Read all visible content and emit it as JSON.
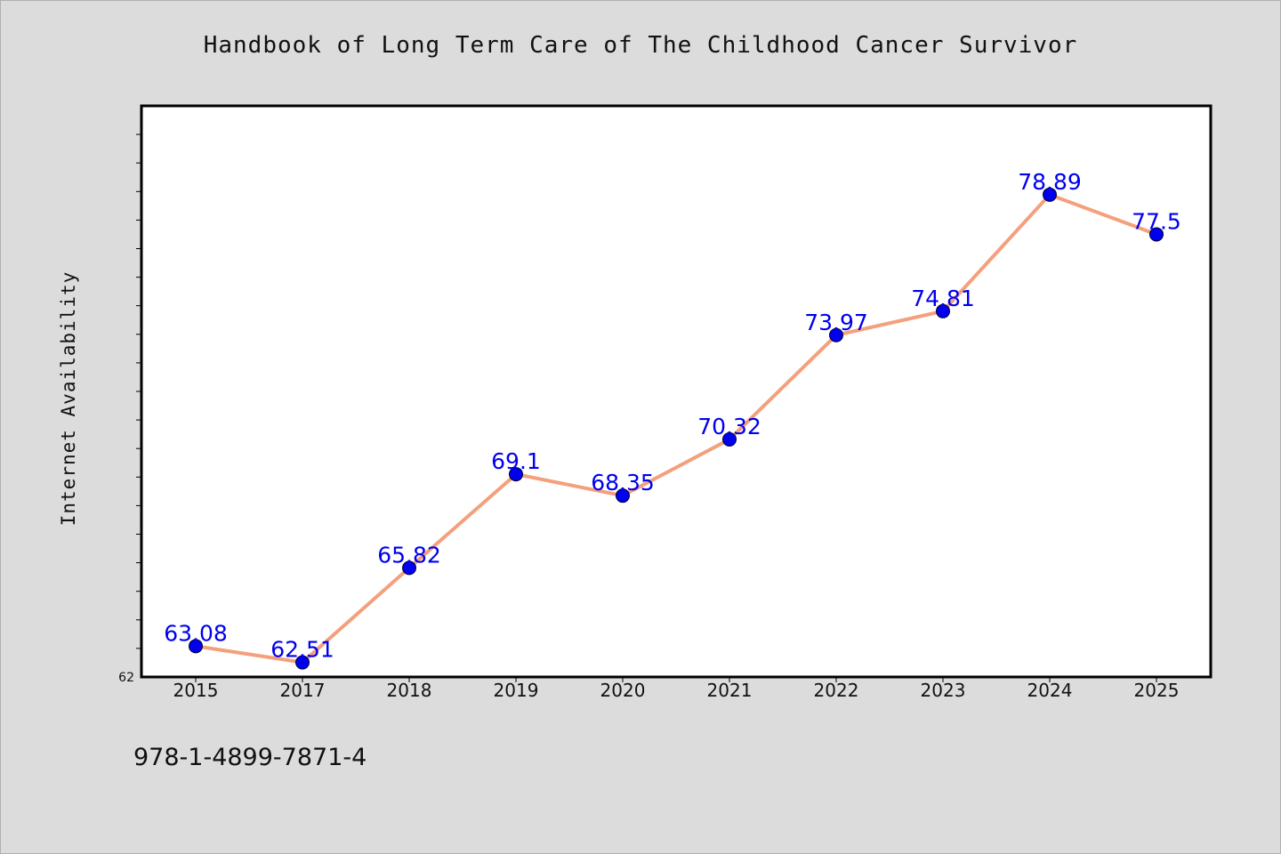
{
  "chart_data": {
    "type": "line",
    "title": "Handbook of Long Term Care of The Childhood Cancer Survivor",
    "xlabel": "",
    "ylabel": "Internet Availability",
    "categories": [
      "2015",
      "2017",
      "2018",
      "2019",
      "2020",
      "2021",
      "2022",
      "2023",
      "2024",
      "2025"
    ],
    "series": [
      {
        "values": [
          63.08,
          62.51,
          65.82,
          69.1,
          68.35,
          70.32,
          73.97,
          74.81,
          78.89,
          77.5
        ],
        "labels": [
          "63.08",
          "62.51",
          "65.82",
          "69.1",
          "68.35",
          "70.32",
          "73.97",
          "74.81",
          "78.89",
          "77.5"
        ]
      }
    ],
    "ylim": [
      62,
      82
    ],
    "y_tick_labels": [
      "62"
    ],
    "grid": false,
    "line_color": "#f4a07c",
    "marker_color": "#0000ee",
    "label_color": "#0000ee"
  },
  "footer": {
    "isbn": "978-1-4899-7871-4"
  }
}
